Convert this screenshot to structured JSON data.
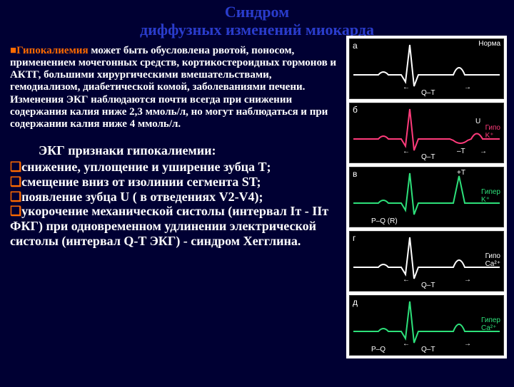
{
  "title_line1": "Синдром",
  "title_line2": "диффузных изменений миокарда",
  "title_color": "#2a3ccc",
  "title_fontsize": 22,
  "desc_fontsize": 15,
  "desc_highlight": "Гипокалиемия",
  "desc_rest": " может быть обусловлена рвотой, поносом, применением мочегонных средств, кортикостероидных гормонов и АКТГ, большими хирургическими вмешательствами, гемодиализом, диабетической комой, заболеваниями печени. Изменения ЭКГ наблюдаются почти всегда при снижении содержания калия ниже 2,3 ммоль/л, но могут наблюдаться и при содержании калия ниже 4 ммоль/л.",
  "subhead": "ЭКГ признаки гипокалиемии:",
  "subhead_fontsize": 18,
  "bullet_char": "❑",
  "items": [
    "снижение, уплощение и уширение зубца Т;",
    "смещение вниз от изолинии сегмента ST;",
    "появление зубца U ( в отведениях V2-V4);",
    "укорочение механической систолы (интервал Iт - IIт ФКГ) при одновременном удлинении электрической систолы (интервал Q-T ЭКГ) - синдром Хегглина."
  ],
  "item_fontsize": 18,
  "panels": [
    {
      "left": "а",
      "right": "Норма",
      "right_color": "#ffffff",
      "trace_color": "#ffffff",
      "qt": "Q–T",
      "show_u": false,
      "t_label": ""
    },
    {
      "left": "б",
      "right": "Гипо\nK⁺",
      "right_color": "#ff3b7b",
      "trace_color": "#ff3b7b",
      "qt": "Q–T",
      "show_u": true,
      "t_label": "–T"
    },
    {
      "left": "в",
      "right": "Гипер\nK⁺",
      "right_color": "#2de07a",
      "trace_color": "#2de07a",
      "qt": "",
      "show_u": false,
      "t_label": "+T",
      "pq_label": "P–Q (R)"
    },
    {
      "left": "г",
      "right": "Гипо\nCa²⁺",
      "right_color": "#ffffff",
      "trace_color": "#ffffff",
      "qt": "Q–T",
      "show_u": false,
      "t_label": ""
    },
    {
      "left": "д",
      "right": "Гипер\nCa²⁺",
      "right_color": "#2de07a",
      "trace_color": "#2de07a",
      "qt": "Q–T",
      "show_u": false,
      "t_label": "",
      "pq_label": "P–Q"
    }
  ],
  "panel_bg": "#000000",
  "column_bg": "#ffffff"
}
